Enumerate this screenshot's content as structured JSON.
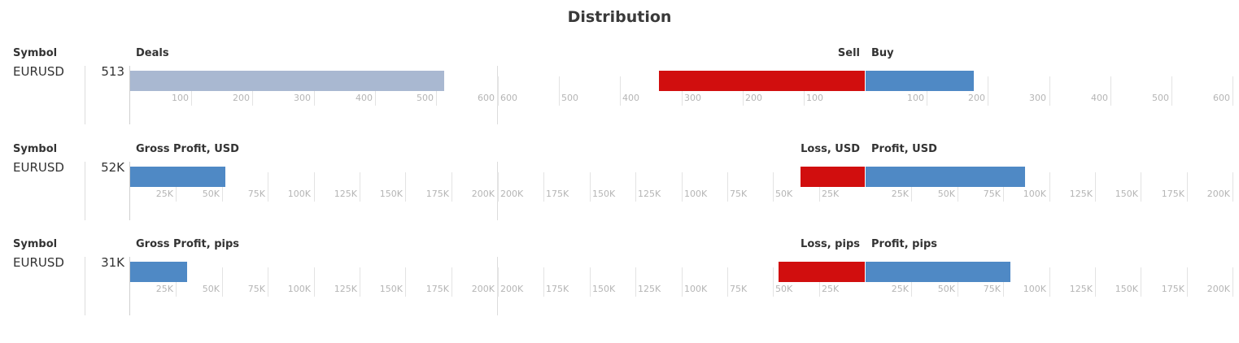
{
  "title": "Distribution",
  "colors": {
    "total": "#a9b8d1",
    "sell": "#d10e0e",
    "buy": "#4f89c5",
    "profit": "#4f89c5",
    "loss": "#d10e0e"
  },
  "sections": [
    {
      "symbol_header": "Symbol",
      "total_header": "Deals",
      "left_header": "Sell",
      "right_header": "Buy",
      "symbol": "EURUSD",
      "total_label": "513",
      "left_ticks": [
        "600",
        "500",
        "400",
        "300",
        "200",
        "100"
      ],
      "right_ticks": [
        "100",
        "200",
        "300",
        "400",
        "500",
        "600"
      ],
      "total_ticks": [
        "100",
        "200",
        "300",
        "400",
        "500",
        "600"
      ]
    },
    {
      "symbol_header": "Symbol",
      "total_header": "Gross Profit, USD",
      "left_header": "Loss, USD",
      "right_header": "Profit, USD",
      "symbol": "EURUSD",
      "total_label": "52K",
      "left_ticks": [
        "200K",
        "175K",
        "150K",
        "125K",
        "100K",
        "75K",
        "50K",
        "25K"
      ],
      "right_ticks": [
        "25K",
        "50K",
        "75K",
        "100K",
        "125K",
        "150K",
        "175K",
        "200K"
      ],
      "total_ticks": [
        "25K",
        "50K",
        "75K",
        "100K",
        "125K",
        "150K",
        "175K",
        "200K"
      ]
    },
    {
      "symbol_header": "Symbol",
      "total_header": "Gross Profit, pips",
      "left_header": "Loss, pips",
      "right_header": "Profit, pips",
      "symbol": "EURUSD",
      "total_label": "31K",
      "left_ticks": [
        "200K",
        "175K",
        "150K",
        "125K",
        "100K",
        "75K",
        "50K",
        "25K"
      ],
      "right_ticks": [
        "25K",
        "50K",
        "75K",
        "100K",
        "125K",
        "150K",
        "175K",
        "200K"
      ],
      "total_ticks": [
        "25K",
        "50K",
        "75K",
        "100K",
        "125K",
        "150K",
        "175K",
        "200K"
      ]
    }
  ],
  "chart_data": [
    {
      "type": "bar",
      "title": "Deals",
      "categories": [
        "EURUSD"
      ],
      "series": [
        {
          "name": "Deals",
          "values": [
            513
          ]
        },
        {
          "name": "Sell",
          "values": [
            336
          ]
        },
        {
          "name": "Buy",
          "values": [
            177
          ]
        }
      ],
      "xlim": [
        0,
        600
      ]
    },
    {
      "type": "bar",
      "title": "Gross Profit, USD",
      "categories": [
        "EURUSD"
      ],
      "series": [
        {
          "name": "Gross Profit, USD",
          "values": [
            52000
          ]
        },
        {
          "name": "Loss, USD",
          "values": [
            35000
          ]
        },
        {
          "name": "Profit, USD",
          "values": [
            87000
          ]
        }
      ],
      "xlim": [
        0,
        200000
      ]
    },
    {
      "type": "bar",
      "title": "Gross Profit, pips",
      "categories": [
        "EURUSD"
      ],
      "series": [
        {
          "name": "Gross Profit, pips",
          "values": [
            31000
          ]
        },
        {
          "name": "Loss, pips",
          "values": [
            47000
          ]
        },
        {
          "name": "Profit, pips",
          "values": [
            79000
          ]
        }
      ],
      "xlim": [
        0,
        200000
      ]
    }
  ]
}
